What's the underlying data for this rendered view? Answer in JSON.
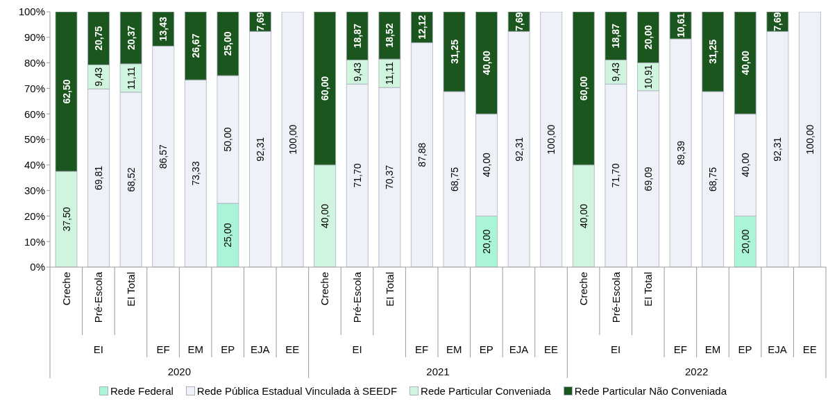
{
  "chart_data": {
    "type": "bar",
    "stacked": true,
    "categories": [
      "Creche",
      "Pré-Escola",
      "EI Total",
      "EF",
      "EM",
      "EP",
      "EJA",
      "EE",
      "Creche",
      "Pré-Escola",
      "EI Total",
      "EF",
      "EM",
      "EP",
      "EJA",
      "EE",
      "Creche",
      "Pré-Escola",
      "EI Total",
      "EF",
      "EM",
      "EP",
      "EJA",
      "EE"
    ],
    "series": [
      {
        "name": "Rede Federal",
        "color": "#aaf5d8",
        "values": [
          null,
          null,
          null,
          null,
          null,
          25.0,
          null,
          null,
          null,
          null,
          null,
          null,
          null,
          20.0,
          null,
          null,
          null,
          null,
          null,
          null,
          null,
          20.0,
          null,
          null
        ],
        "value_labels": [
          null,
          null,
          null,
          null,
          null,
          "25,00",
          null,
          null,
          null,
          null,
          null,
          null,
          null,
          "20,00",
          null,
          null,
          null,
          null,
          null,
          null,
          null,
          "20,00",
          null,
          null
        ]
      },
      {
        "name": "Rede Pública Estadual Vinculada à SEEDF",
        "color": "#eef1f8",
        "values": [
          null,
          69.81,
          68.52,
          86.57,
          73.33,
          50.0,
          92.31,
          100.0,
          null,
          71.7,
          70.37,
          87.88,
          68.75,
          40.0,
          92.31,
          100.0,
          null,
          71.7,
          69.09,
          89.39,
          68.75,
          40.0,
          92.31,
          100.0
        ],
        "value_labels": [
          null,
          "69,81",
          "68,52",
          "86,57",
          "73,33",
          "50,00",
          "92,31",
          "100,00",
          null,
          "71,70",
          "70,37",
          "87,88",
          "68,75",
          "40,00",
          "92,31",
          "100,00",
          null,
          "71,70",
          "69,09",
          "89,39",
          "68,75",
          "40,00",
          "92,31",
          "100,00"
        ]
      },
      {
        "name": "Rede Particular Conveniada",
        "color": "#cff5de",
        "values": [
          37.5,
          9.43,
          11.11,
          null,
          null,
          null,
          null,
          null,
          40.0,
          9.43,
          11.11,
          null,
          null,
          null,
          null,
          null,
          40.0,
          9.43,
          10.91,
          null,
          null,
          null,
          null,
          null
        ],
        "value_labels": [
          "37,50",
          "9,43",
          "11,11",
          null,
          null,
          null,
          null,
          null,
          "40,00",
          "9,43",
          "11,11",
          null,
          null,
          null,
          null,
          null,
          "40,00",
          "9,43",
          "10,91",
          null,
          null,
          null,
          null,
          null
        ]
      },
      {
        "name": "Rede Particular Não Conveniada",
        "color": "#1a561d",
        "values": [
          62.5,
          20.75,
          20.37,
          13.43,
          26.67,
          25.0,
          7.69,
          null,
          60.0,
          18.87,
          18.52,
          12.12,
          31.25,
          40.0,
          7.69,
          null,
          60.0,
          18.87,
          20.0,
          10.61,
          31.25,
          40.0,
          7.69,
          null
        ],
        "value_labels": [
          "62,50",
          "20,75",
          "20,37",
          "13,43",
          "26,67",
          "25,00",
          "7,69",
          null,
          "60,00",
          "18,87",
          "18,52",
          "12,12",
          "31,25",
          "40,00",
          "7,69",
          null,
          "60,00",
          "18,87",
          "20,00",
          "10,61",
          "31,25",
          "40,00",
          "7,69",
          null
        ]
      }
    ],
    "ylim": [
      0,
      100
    ],
    "yticks": [
      {
        "value": 0,
        "label": "0%"
      },
      {
        "value": 10,
        "label": "10%"
      },
      {
        "value": 20,
        "label": "20%"
      },
      {
        "value": 30,
        "label": "30%"
      },
      {
        "value": 40,
        "label": "40%"
      },
      {
        "value": 50,
        "label": "50%"
      },
      {
        "value": 60,
        "label": "60%"
      },
      {
        "value": 70,
        "label": "70%"
      },
      {
        "value": 80,
        "label": "80%"
      },
      {
        "value": 90,
        "label": "90%"
      },
      {
        "value": 100,
        "label": "100%"
      }
    ],
    "legend": "bottom",
    "annotations": [
      "EI",
      "EI",
      "EI",
      "2020",
      "2021",
      "2022"
    ]
  }
}
